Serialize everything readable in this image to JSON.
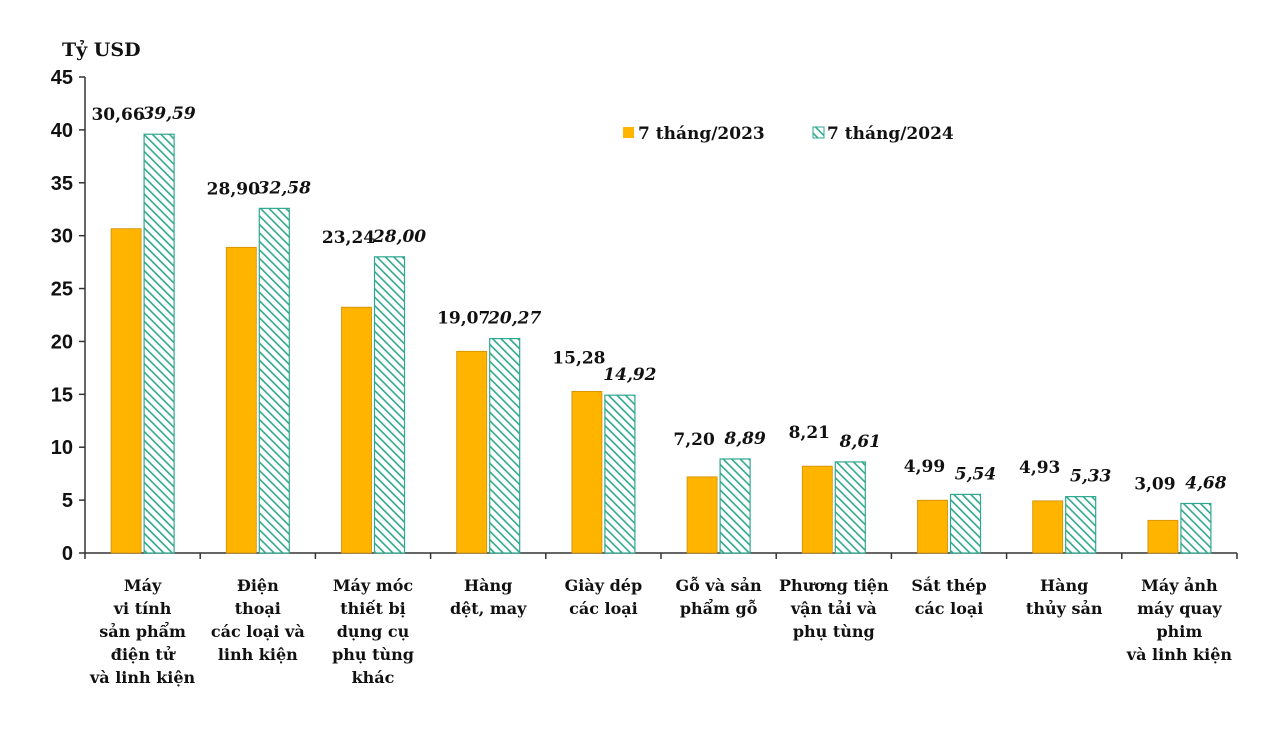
{
  "chart_data": {
    "type": "bar",
    "ylabel": "Tỷ USD",
    "ylim": [
      0,
      45
    ],
    "yticks": [
      "0",
      "5",
      "10",
      "15",
      "20",
      "25",
      "30",
      "35",
      "40",
      "45"
    ],
    "legend_position": "top-right",
    "categories": [
      [
        "Máy",
        "vi tính",
        "sản phẩm",
        "điện tử",
        "và linh kiện"
      ],
      [
        "Điện",
        "thoại",
        "các loại và",
        "linh kiện"
      ],
      [
        "Máy móc",
        "thiết bị",
        "dụng cụ",
        "phụ tùng",
        "khác"
      ],
      [
        "Hàng",
        "dệt, may"
      ],
      [
        "Giày dép",
        "các loại"
      ],
      [
        "Gỗ và sản",
        "phẩm gỗ"
      ],
      [
        "Phương tiện",
        "vận tải và",
        "phụ tùng"
      ],
      [
        "Sắt thép",
        "các loại"
      ],
      [
        "Hàng",
        "thủy sản"
      ],
      [
        "Máy ảnh",
        "máy quay",
        "phim",
        "và linh kiện"
      ]
    ],
    "series": [
      {
        "name": "7 tháng/2023",
        "color": "#FFB400",
        "values": [
          30.66,
          28.9,
          23.24,
          19.07,
          15.28,
          7.2,
          8.21,
          4.99,
          4.93,
          3.09
        ],
        "labels": [
          "30,66",
          "28,90",
          "23,24",
          "19,07",
          "15,28",
          "7,20",
          "8,21",
          "4,99",
          "4,93",
          "3,09"
        ]
      },
      {
        "name": "7 tháng/2024",
        "color": "#2FA88F",
        "fill": "hatched",
        "values": [
          39.59,
          32.58,
          28.0,
          20.27,
          14.92,
          8.89,
          8.61,
          5.54,
          5.33,
          4.68
        ],
        "labels": [
          "39,59",
          "32,58",
          "28,00",
          "20,27",
          "14,92",
          "8,89",
          "8,61",
          "5,54",
          "5,33",
          "4,68"
        ]
      }
    ]
  }
}
